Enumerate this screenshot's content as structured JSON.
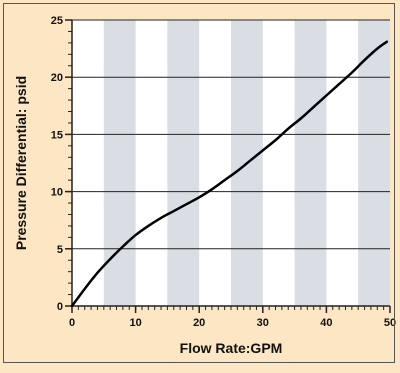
{
  "chart_data": {
    "type": "line",
    "title": "",
    "xlabel": "Flow Rate:GPM",
    "ylabel": "Pressure Differential:  psid",
    "xlim": [
      0,
      50
    ],
    "ylim": [
      0,
      25
    ],
    "x_ticks": [
      0,
      10,
      20,
      30,
      40,
      50
    ],
    "y_ticks": [
      0,
      5,
      10,
      15,
      20,
      25
    ],
    "x_minor_step": 5,
    "y_minor_step": 1,
    "grid": "horizontal lines at major y ticks; alternating vertical bands every 5 GPM",
    "series": [
      {
        "x": [
          0,
          2,
          4,
          6,
          8,
          10,
          12,
          14,
          16,
          18,
          20,
          22,
          24,
          26,
          28,
          30,
          32,
          34,
          36,
          38,
          40,
          42,
          44,
          46,
          48,
          49.5
        ],
        "y": [
          0,
          1.5,
          2.9,
          4.1,
          5.2,
          6.2,
          7.0,
          7.7,
          8.3,
          8.9,
          9.5,
          10.2,
          11.0,
          11.8,
          12.7,
          13.6,
          14.5,
          15.5,
          16.4,
          17.4,
          18.4,
          19.4,
          20.4,
          21.5,
          22.5,
          23.1
        ]
      }
    ]
  },
  "colors": {
    "background": "#fde6c4",
    "plot_bg": "#ffffff",
    "band": "#d9dde4",
    "grid": "#222222",
    "line": "#000000"
  }
}
